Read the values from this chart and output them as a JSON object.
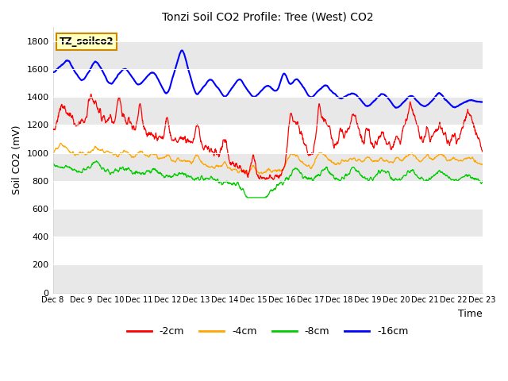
{
  "title": "Tonzi Soil CO2 Profile: Tree (West) CO2",
  "xlabel": "Time",
  "ylabel": "Soil CO2 (mV)",
  "ylim": [
    0,
    1900
  ],
  "yticks": [
    0,
    200,
    400,
    600,
    800,
    1000,
    1200,
    1400,
    1600,
    1800
  ],
  "x_labels": [
    "Dec 8",
    "Dec 9",
    "Dec 10",
    "Dec 11",
    "Dec 12",
    "Dec 13",
    "Dec 14",
    "Dec 15",
    "Dec 16",
    "Dec 17",
    "Dec 18",
    "Dec 19",
    "Dec 20",
    "Dec 21",
    "Dec 22",
    "Dec 23"
  ],
  "annotation_text": "TZ_soilco2",
  "annotation_bg": "#ffffc0",
  "annotation_border": "#cc8800",
  "background_color": "#ffffff",
  "plot_bg_color": "#ffffff",
  "band_light": "#e8e8e8",
  "band_white": "#ffffff",
  "colors": {
    "-2cm": "#ff0000",
    "-4cm": "#ffa500",
    "-8cm": "#00cc00",
    "-16cm": "#0000ff"
  },
  "legend_labels": [
    "-2cm",
    "-4cm",
    "-8cm",
    "-16cm"
  ]
}
